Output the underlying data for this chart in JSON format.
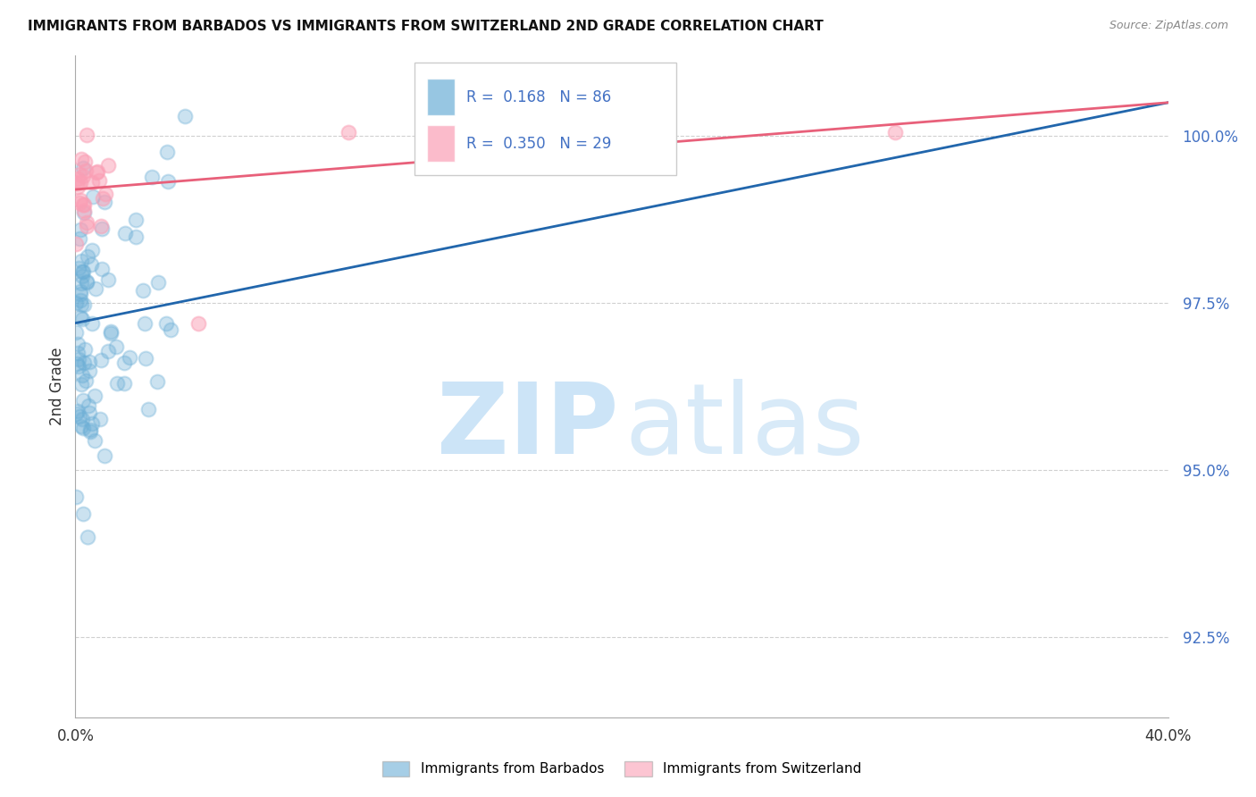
{
  "title": "IMMIGRANTS FROM BARBADOS VS IMMIGRANTS FROM SWITZERLAND 2ND GRADE CORRELATION CHART",
  "source": "Source: ZipAtlas.com",
  "ylabel": "2nd Grade",
  "ytick_labels": [
    "92.5%",
    "95.0%",
    "97.5%",
    "100.0%"
  ],
  "ytick_values": [
    92.5,
    95.0,
    97.5,
    100.0
  ],
  "xlim": [
    0.0,
    40.0
  ],
  "ylim": [
    91.3,
    101.2
  ],
  "blue_R": 0.168,
  "blue_N": 86,
  "pink_R": 0.35,
  "pink_N": 29,
  "blue_color": "#6baed6",
  "pink_color": "#fa9fb5",
  "blue_line_color": "#2166ac",
  "pink_line_color": "#e8607a",
  "legend_label_blue": "Immigrants from Barbados",
  "legend_label_pink": "Immigrants from Switzerland",
  "blue_line_x": [
    0.0,
    40.0
  ],
  "blue_line_y": [
    97.2,
    100.5
  ],
  "pink_line_x": [
    0.0,
    40.0
  ],
  "pink_line_y": [
    99.2,
    100.5
  ]
}
